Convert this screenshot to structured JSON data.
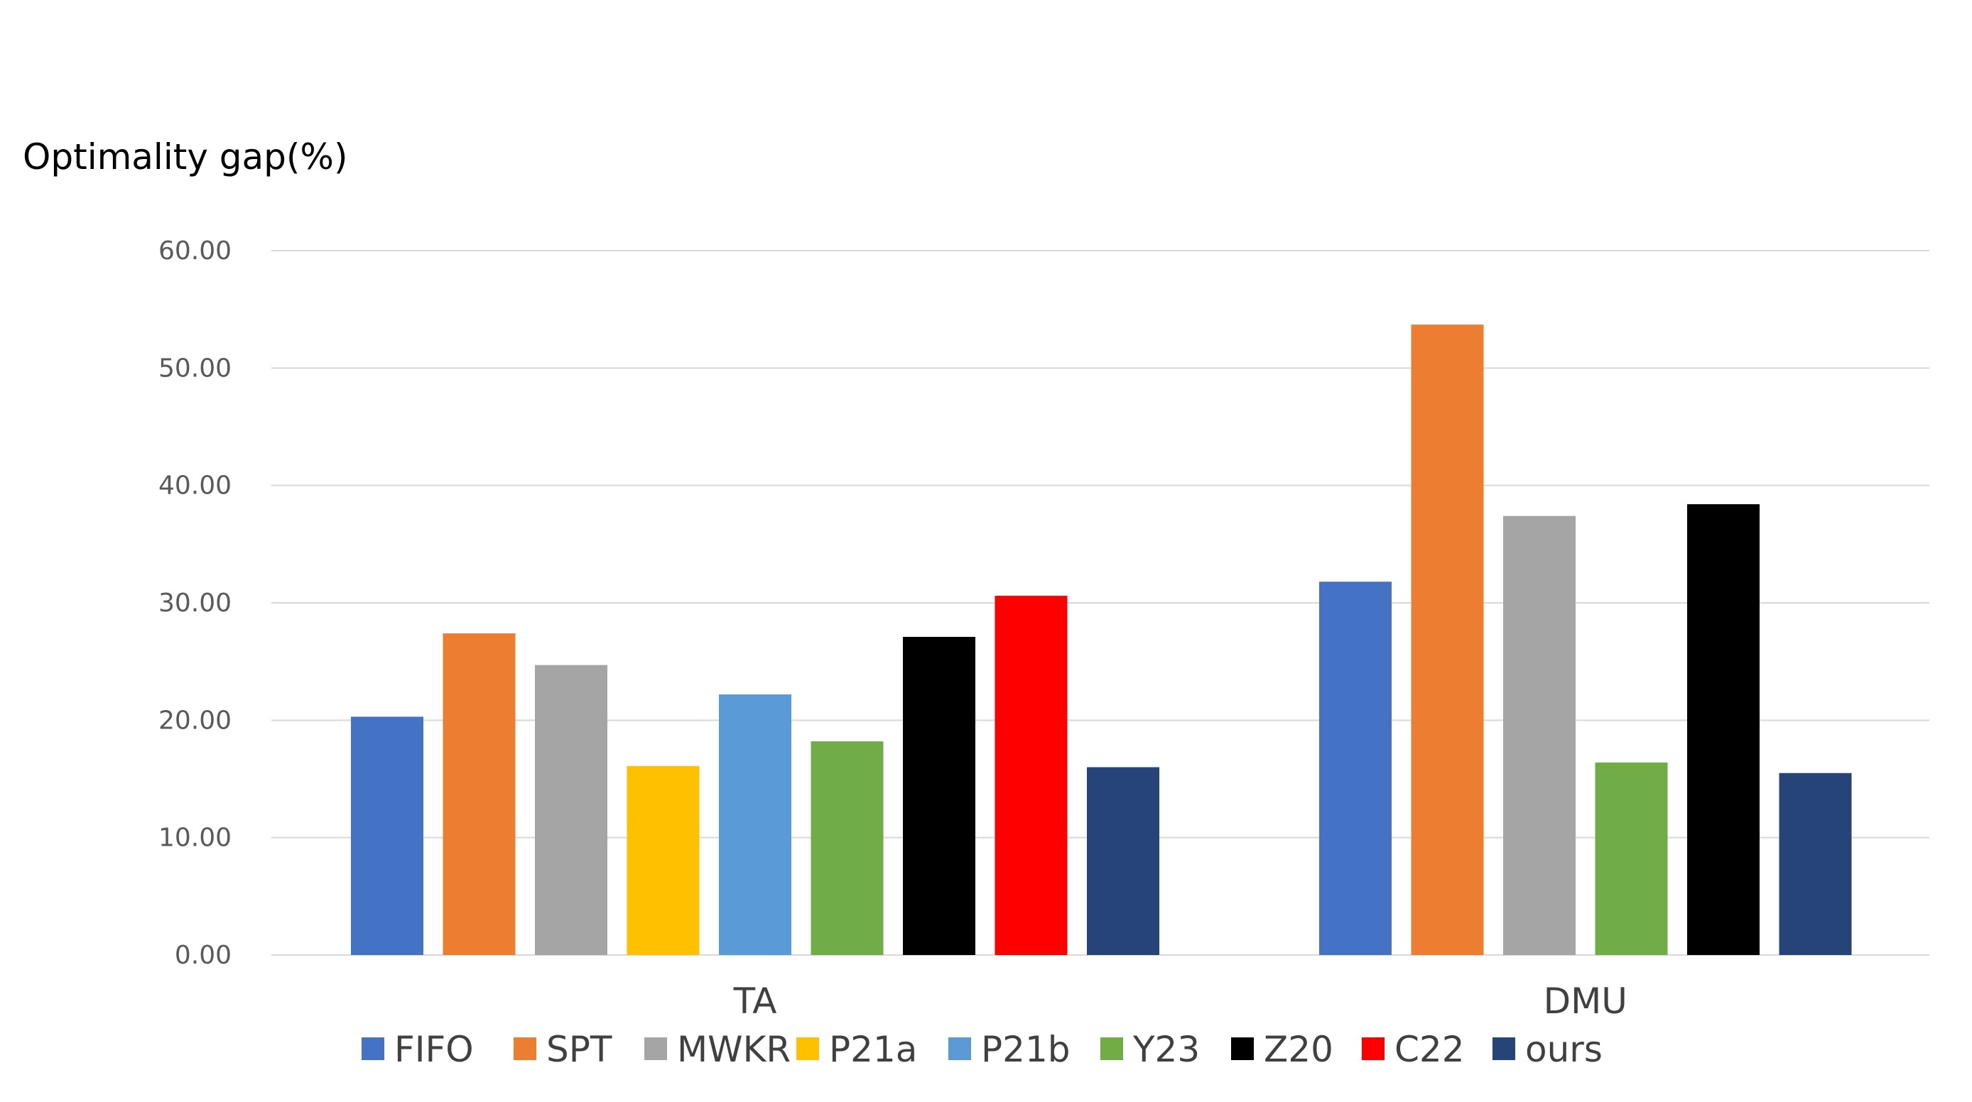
{
  "chart_data": {
    "type": "bar",
    "title": "",
    "ylabel": "Optimality gap(%)",
    "xlabel": "",
    "ylim": [
      0,
      60
    ],
    "yticks": [
      "0.00",
      "10.00",
      "20.00",
      "30.00",
      "40.00",
      "50.00",
      "60.00"
    ],
    "grid": true,
    "legend_position": "bottom",
    "categories": [
      "TA",
      "DMU"
    ],
    "series": [
      {
        "name": "FIFO",
        "color": "#4472C4",
        "values": [
          20.3,
          31.8
        ]
      },
      {
        "name": "SPT",
        "color": "#ED7D31",
        "values": [
          27.4,
          53.7
        ]
      },
      {
        "name": "MWKR",
        "color": "#A5A5A5",
        "values": [
          24.7,
          37.4
        ]
      },
      {
        "name": "P21a",
        "color": "#FFC000",
        "values": [
          16.1,
          null
        ]
      },
      {
        "name": "P21b",
        "color": "#5B9BD5",
        "values": [
          22.2,
          null
        ]
      },
      {
        "name": "Y23",
        "color": "#70AD47",
        "values": [
          18.2,
          16.4
        ]
      },
      {
        "name": "Z20",
        "color": "#000000",
        "values": [
          27.1,
          38.4
        ]
      },
      {
        "name": "C22",
        "color": "#FF0000",
        "values": [
          30.6,
          null
        ]
      },
      {
        "name": "ours",
        "color": "#264478",
        "values": [
          16.0,
          15.5
        ]
      }
    ]
  }
}
